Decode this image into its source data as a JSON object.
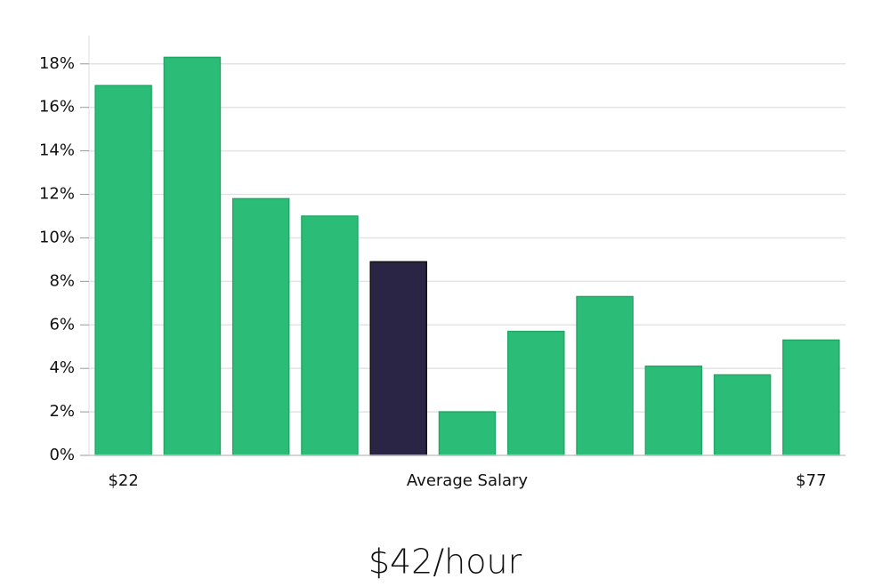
{
  "chart_data": {
    "type": "bar",
    "subtitle": "$42/hour",
    "x_label": "Average Salary",
    "categories": [
      "$22",
      null,
      null,
      null,
      null,
      null,
      null,
      null,
      null,
      null,
      "$77"
    ],
    "values": [
      17.0,
      18.3,
      11.8,
      11.0,
      8.9,
      2.0,
      5.7,
      7.3,
      4.1,
      3.7,
      5.3
    ],
    "colors": [
      "#2bbd77",
      "#2bbd77",
      "#2bbd77",
      "#2bbd77",
      "#2a2545",
      "#2bbd77",
      "#2bbd77",
      "#2bbd77",
      "#2bbd77",
      "#2bbd77",
      "#2bbd77"
    ],
    "ylim": [
      0,
      19.3
    ],
    "yticks": [
      {
        "value": 0,
        "label": "0%"
      },
      {
        "value": 2,
        "label": "2%"
      },
      {
        "value": 4,
        "label": "4%"
      },
      {
        "value": 6,
        "label": "6%"
      },
      {
        "value": 8,
        "label": "8%"
      },
      {
        "value": 10,
        "label": "10%"
      },
      {
        "value": 12,
        "label": "12%"
      },
      {
        "value": 14,
        "label": "14%"
      },
      {
        "value": 16,
        "label": "16%"
      },
      {
        "value": 18,
        "label": "18%"
      }
    ],
    "grid": true
  }
}
